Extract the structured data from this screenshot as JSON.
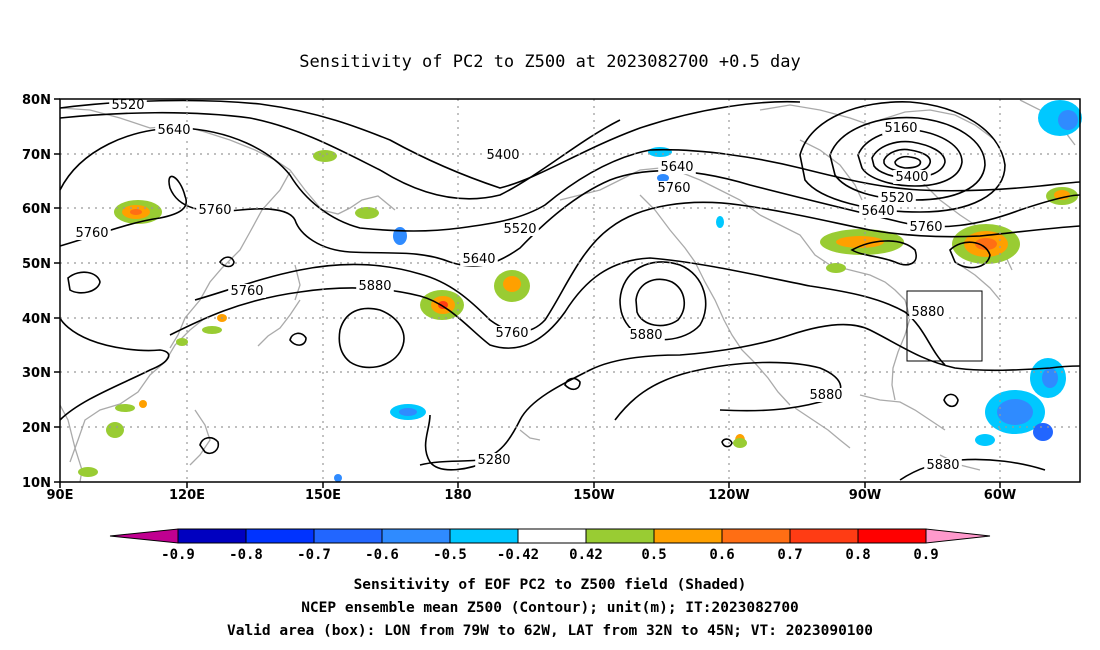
{
  "title": "Sensitivity of PC2 to Z500 at 2023082700 +0.5 day",
  "lat_ticks": [
    "80N",
    "70N",
    "60N",
    "50N",
    "40N",
    "30N",
    "20N",
    "10N"
  ],
  "lon_ticks": [
    "90E",
    "120E",
    "150E",
    "180",
    "150W",
    "120W",
    "90W",
    "60W"
  ],
  "contour_labels": [
    "5520",
    "5640",
    "5760",
    "5760",
    "5760",
    "5400",
    "5520",
    "5640",
    "5880",
    "5640",
    "5760",
    "5760",
    "5880",
    "5880",
    "5280",
    "5160",
    "5400",
    "5520",
    "5640",
    "5760",
    "5880",
    "5880"
  ],
  "colorbar": {
    "labels": [
      "-0.9",
      "-0.8",
      "-0.7",
      "-0.6",
      "-0.5",
      "-0.42",
      "0.42",
      "0.5",
      "0.6",
      "0.7",
      "0.8",
      "0.9"
    ],
    "colors": [
      "#c00090",
      "#0000c0",
      "#0033ff",
      "#2266ff",
      "#2f8bff",
      "#00c8ff",
      "#ffffff",
      "#99cc33",
      "#ffa000",
      "#ff6e14",
      "#ff3c14",
      "#ff0000",
      "#ff99cc"
    ]
  },
  "footer": [
    "Sensitivity of EOF PC2 to Z500 field (Shaded)",
    "NCEP ensemble mean Z500 (Contour); unit(m); IT:2023082700",
    "Valid area (box): LON from 79W to 62W, LAT from 32N to 45N; VT: 2023090100"
  ]
}
